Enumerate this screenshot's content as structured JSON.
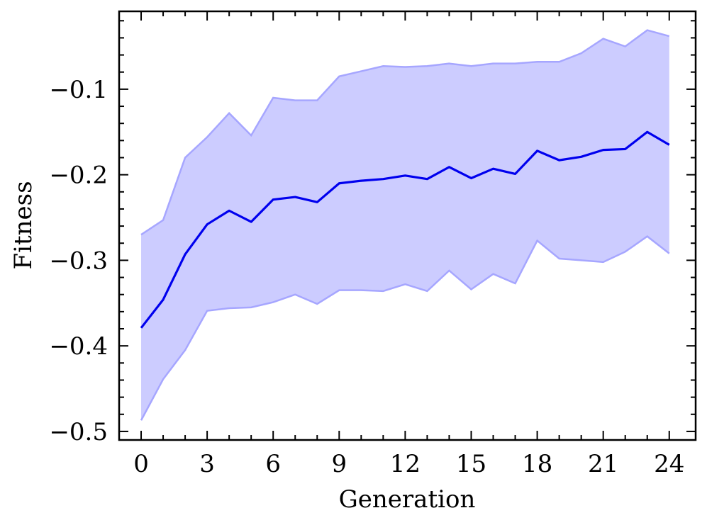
{
  "chart_data": {
    "type": "line",
    "title": "",
    "xlabel": "Generation",
    "ylabel": "Fitness",
    "xlim": [
      -1,
      25.2
    ],
    "ylim": [
      -0.51,
      -0.009
    ],
    "x_ticks": [
      0,
      3,
      6,
      9,
      12,
      15,
      18,
      21,
      24
    ],
    "x_tick_labels": [
      "0",
      "3",
      "6",
      "9",
      "12",
      "15",
      "18",
      "21",
      "24"
    ],
    "y_ticks": [
      -0.5,
      -0.4,
      -0.3,
      -0.2,
      -0.1
    ],
    "y_tick_labels": [
      "−0.5",
      "−0.4",
      "−0.3",
      "−0.2",
      "−0.1"
    ],
    "grid": false,
    "colors": {
      "line": "#0000ee",
      "band_fill": "#ccccff",
      "band_edge": "#a6a6ff"
    },
    "x": [
      0,
      1,
      2,
      3,
      4,
      5,
      6,
      7,
      8,
      9,
      10,
      11,
      12,
      13,
      14,
      15,
      16,
      17,
      18,
      19,
      20,
      21,
      22,
      23,
      24
    ],
    "series": [
      {
        "values": [
          -0.379,
          -0.346,
          -0.293,
          -0.258,
          -0.242,
          -0.255,
          -0.229,
          -0.226,
          -0.232,
          -0.21,
          -0.207,
          -0.205,
          -0.201,
          -0.205,
          -0.191,
          -0.204,
          -0.193,
          -0.199,
          -0.172,
          -0.183,
          -0.179,
          -0.171,
          -0.17,
          -0.15,
          -0.165
        ],
        "upper": [
          -0.27,
          -0.253,
          -0.18,
          -0.156,
          -0.128,
          -0.154,
          -0.11,
          -0.113,
          -0.113,
          -0.085,
          -0.079,
          -0.073,
          -0.074,
          -0.073,
          -0.07,
          -0.073,
          -0.07,
          -0.07,
          -0.068,
          -0.068,
          -0.058,
          -0.041,
          -0.05,
          -0.031,
          -0.038
        ],
        "lower": [
          -0.487,
          -0.439,
          -0.405,
          -0.359,
          -0.356,
          -0.355,
          -0.349,
          -0.34,
          -0.351,
          -0.335,
          -0.335,
          -0.336,
          -0.328,
          -0.336,
          -0.312,
          -0.334,
          -0.316,
          -0.327,
          -0.277,
          -0.298,
          -0.3,
          -0.302,
          -0.29,
          -0.272,
          -0.292
        ]
      }
    ]
  }
}
